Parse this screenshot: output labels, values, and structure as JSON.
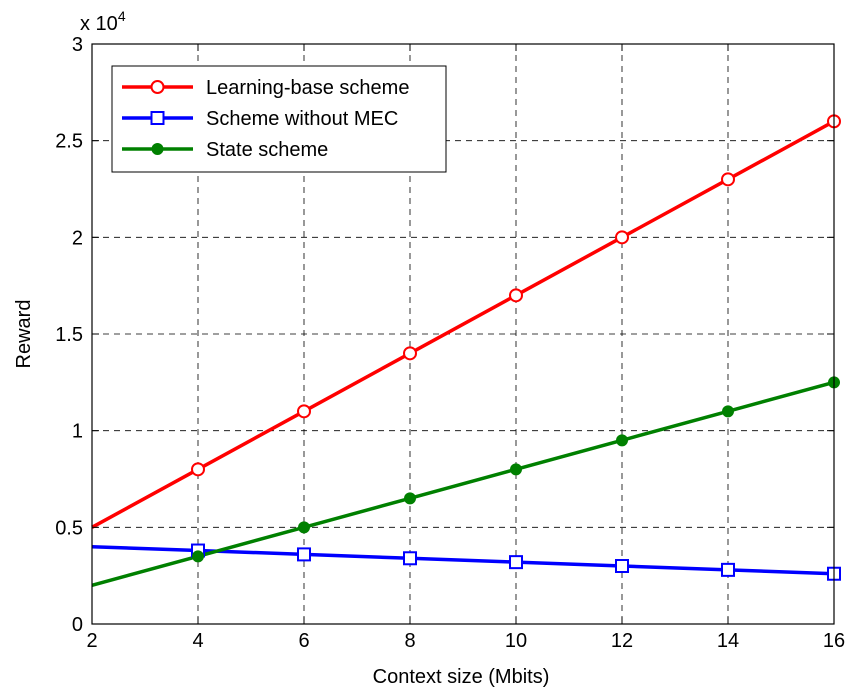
{
  "chart_data": {
    "type": "line",
    "xlabel": "Context size (Mbits)",
    "ylabel": "Reward",
    "y_multiplier": "x 10",
    "y_multiplier_exp": "4",
    "xlim": [
      2,
      16
    ],
    "ylim": [
      0,
      3
    ],
    "xticks": [
      2,
      4,
      6,
      8,
      10,
      12,
      14,
      16
    ],
    "yticks": [
      0,
      0.5,
      1,
      1.5,
      2,
      2.5,
      3
    ],
    "grid": true,
    "legend_position": "top-left",
    "series": [
      {
        "name": "Learning-base scheme",
        "color": "#ff0000",
        "marker": "circle",
        "marker_filled": false,
        "x": [
          2,
          4,
          6,
          8,
          10,
          12,
          14,
          16
        ],
        "y": [
          0.5,
          0.8,
          1.1,
          1.4,
          1.7,
          2.0,
          2.3,
          2.6
        ],
        "marker_x": [
          4,
          6,
          8,
          10,
          12,
          14,
          16
        ]
      },
      {
        "name": "Scheme without MEC",
        "color": "#0000ff",
        "marker": "square",
        "marker_filled": false,
        "x": [
          2,
          4,
          6,
          8,
          10,
          12,
          14,
          16
        ],
        "y": [
          0.4,
          0.38,
          0.36,
          0.34,
          0.32,
          0.3,
          0.28,
          0.26
        ],
        "marker_x": [
          4,
          6,
          8,
          10,
          12,
          14,
          16
        ]
      },
      {
        "name": "State scheme",
        "color": "#008000",
        "marker": "circle",
        "marker_filled": true,
        "x": [
          2,
          4,
          6,
          8,
          10,
          12,
          14,
          16
        ],
        "y": [
          0.2,
          0.35,
          0.5,
          0.65,
          0.8,
          0.95,
          1.1,
          1.25
        ],
        "marker_x": [
          4,
          6,
          8,
          10,
          12,
          14,
          16
        ]
      }
    ]
  }
}
